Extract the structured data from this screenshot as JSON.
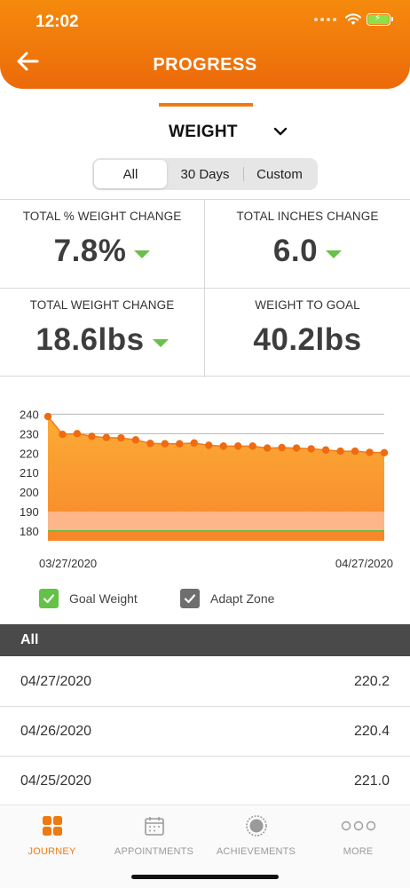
{
  "status_bar": {
    "time": "12:02"
  },
  "header": {
    "title": "PROGRESS"
  },
  "metric_selector": {
    "selected": "WEIGHT"
  },
  "filters": [
    "All",
    "30 Days",
    "Custom"
  ],
  "filter_selected": "All",
  "stats": {
    "total_pct_weight_change": {
      "label": "TOTAL % WEIGHT CHANGE",
      "value": "7.8%",
      "trend": "down"
    },
    "total_inches_change": {
      "label": "TOTAL INCHES CHANGE",
      "value": "6.0",
      "trend": "down"
    },
    "total_weight_change": {
      "label": "TOTAL WEIGHT CHANGE",
      "value": "18.6lbs",
      "trend": "down"
    },
    "weight_to_goal": {
      "label": "WEIGHT TO GOAL",
      "value": "40.2lbs"
    }
  },
  "colors": {
    "brand_orange": "#f07a10",
    "trend_green": "#6cc04a",
    "area_fill": "#fba43a",
    "adapt_zone": "#fdb68a",
    "goal_line": "#64c247"
  },
  "chart_data": {
    "type": "area",
    "yticks": [
      180,
      190,
      200,
      210,
      220,
      230,
      240
    ],
    "ylim": [
      175,
      242
    ],
    "xlabels": [
      "03/27/2020",
      "04/27/2020"
    ],
    "values": [
      238.8,
      229.6,
      230.0,
      228.6,
      228.0,
      227.8,
      226.8,
      225.0,
      224.8,
      224.8,
      225.2,
      224.0,
      223.6,
      223.6,
      223.6,
      222.6,
      222.8,
      222.6,
      222.2,
      221.6,
      221.0,
      221.0,
      220.4,
      220.2
    ],
    "goal_weight": 180,
    "adapt_zone": [
      180,
      190
    ],
    "grid": true
  },
  "legend": {
    "goal_weight": "Goal Weight",
    "adapt_zone": "Adapt Zone"
  },
  "list": {
    "header": "All",
    "rows": [
      {
        "date": "04/27/2020",
        "value": "220.2"
      },
      {
        "date": "04/26/2020",
        "value": "220.4"
      },
      {
        "date": "04/25/2020",
        "value": "221.0"
      }
    ]
  },
  "tabs": [
    {
      "label": "JOURNEY",
      "icon": "grid-icon",
      "active": true
    },
    {
      "label": "APPOINTMENTS",
      "icon": "calendar-icon",
      "active": false
    },
    {
      "label": "ACHIEVEMENTS",
      "icon": "badge-icon",
      "active": false
    },
    {
      "label": "MORE",
      "icon": "more-dots-icon",
      "active": false
    }
  ]
}
